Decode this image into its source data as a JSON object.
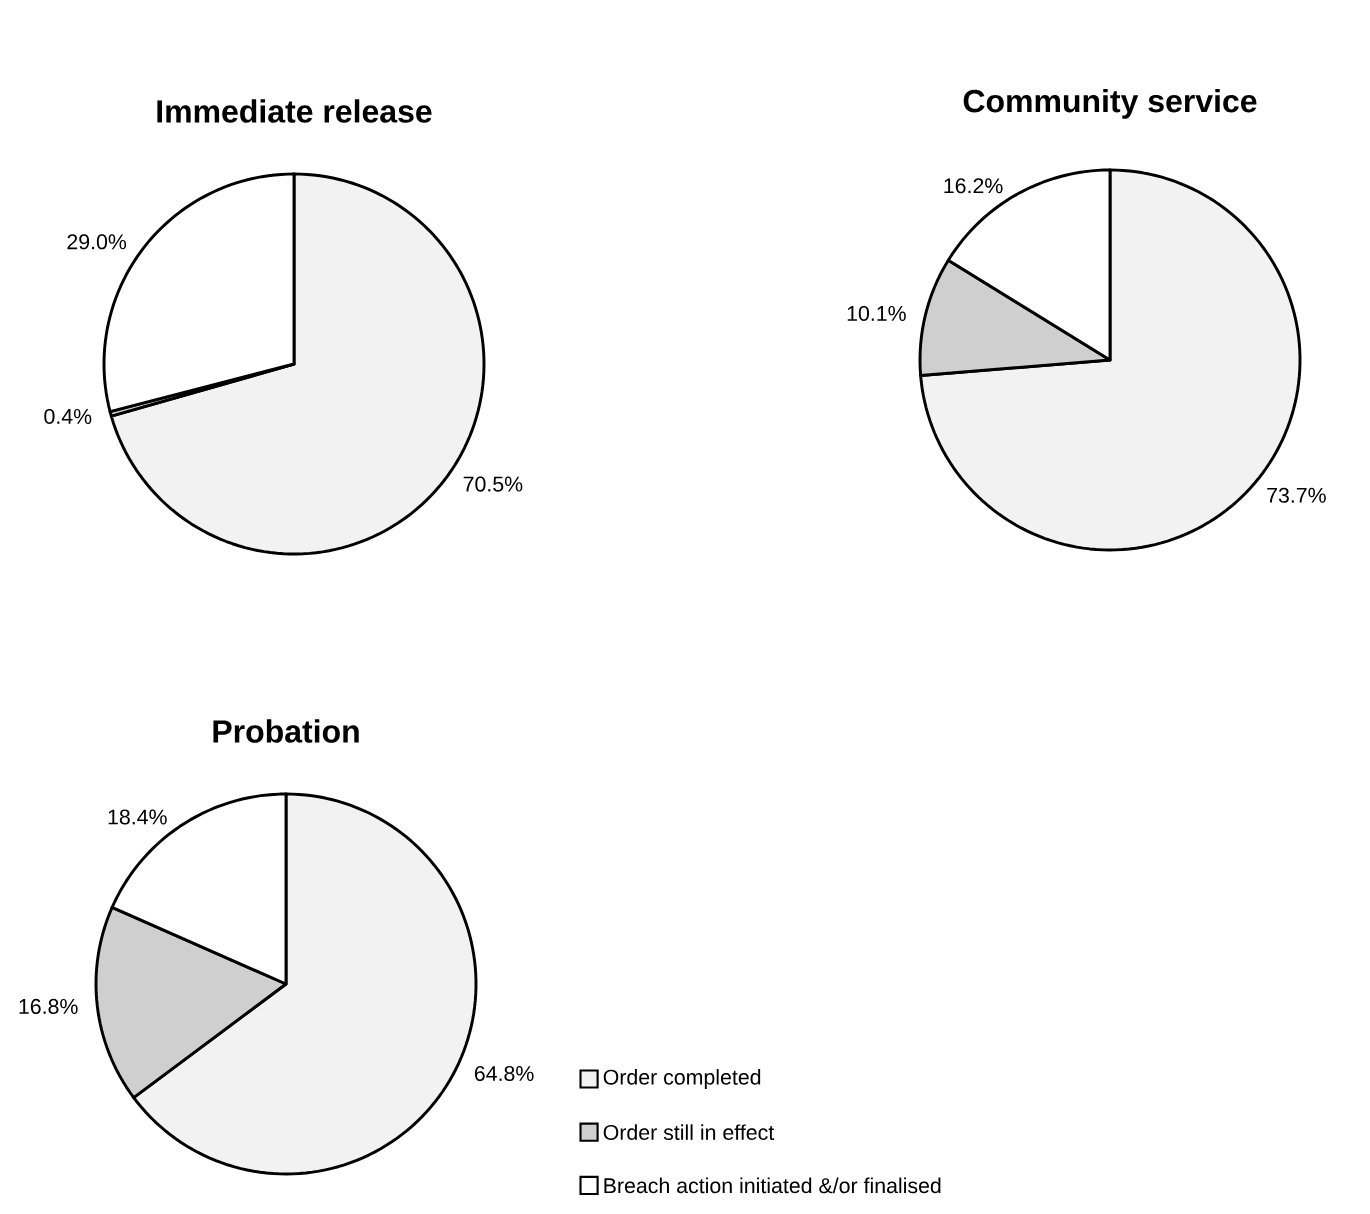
{
  "chart_data": [
    {
      "type": "pie",
      "title": "Immediate release",
      "categories": [
        null,
        null,
        null
      ],
      "values": [
        70.5,
        0.4,
        29.0
      ],
      "value_labels": [
        "70.5%",
        "0.4%",
        "29.0%"
      ],
      "colors": [
        "#f2f2f2",
        "#cfcfcf",
        "#ffffff"
      ],
      "legend": false
    },
    {
      "type": "pie",
      "title": "Community service",
      "categories": [
        null,
        null,
        null
      ],
      "values": [
        73.7,
        10.1,
        16.2
      ],
      "value_labels": [
        "73.7%",
        "10.1%",
        "16.2%"
      ],
      "colors": [
        "#f2f2f2",
        "#cfcfcf",
        "#ffffff"
      ],
      "legend": false
    },
    {
      "type": "pie",
      "title": "Probation",
      "categories": [
        "Order completed",
        "Order still in effect",
        "Breach action initiated &/or finalised"
      ],
      "values": [
        64.8,
        16.8,
        18.4
      ],
      "value_labels": [
        "64.8%",
        "16.8%",
        "18.4%"
      ],
      "colors": [
        "#f2f2f2",
        "#cfcfcf",
        "#ffffff"
      ],
      "legend": "right"
    }
  ]
}
